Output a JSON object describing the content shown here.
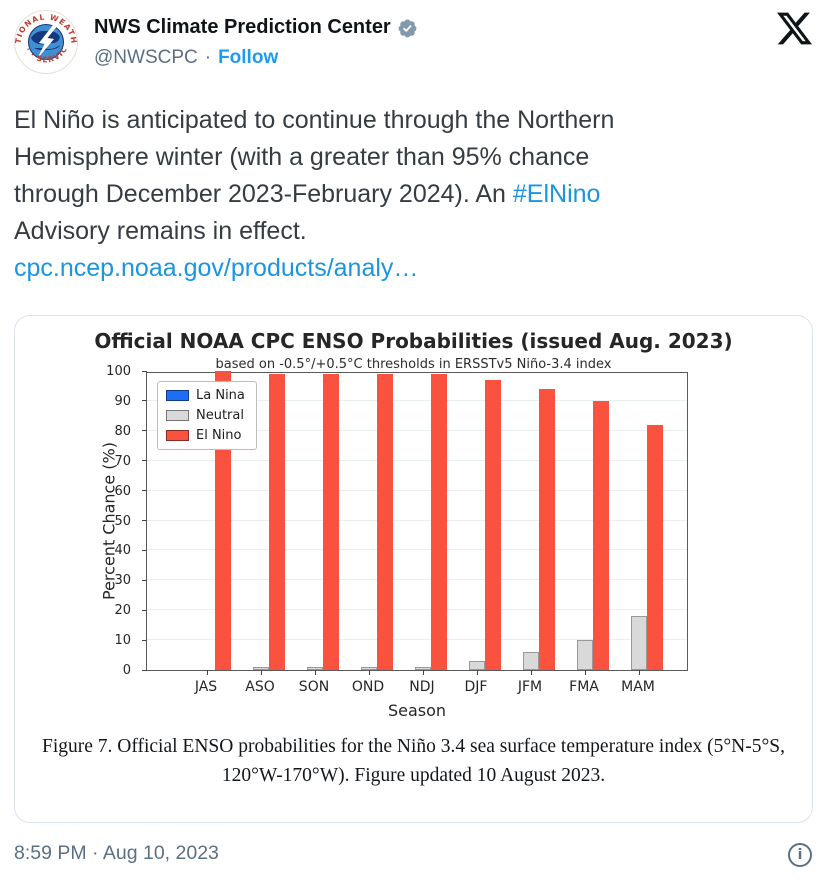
{
  "header": {
    "display_name": "NWS Climate Prediction Center",
    "handle": "@NWSCPC",
    "separator": "·",
    "follow_label": "Follow",
    "avatar_ring_text_top": "NATIONAL WEATHER",
    "avatar_ring_text_bottom": "· · · SERVICE"
  },
  "tweet": {
    "lines": [
      [
        {
          "text": "El Niño is anticipated to continue through the Northern"
        }
      ],
      [
        {
          "text": "Hemisphere winter (with a greater than 95% chance"
        }
      ],
      [
        {
          "text": "through December 2023-February 2024). An "
        },
        {
          "text": "#ElNino",
          "link": true
        }
      ],
      [
        {
          "text": "Advisory remains in effect."
        }
      ],
      [
        {
          "text": "cpc.ncep.noaa.gov/products/analy…",
          "link": true
        }
      ]
    ]
  },
  "chart_data": {
    "type": "bar",
    "title": "Official NOAA CPC ENSO Probabilities (issued Aug. 2023)",
    "subtitle": "based on -0.5°/+0.5°C thresholds in ERSSTv5 Niño-3.4 index",
    "xlabel": "Season",
    "ylabel": "Percent Chance (%)",
    "ylim": [
      0,
      100
    ],
    "yticks": [
      0,
      10,
      20,
      30,
      40,
      50,
      60,
      70,
      80,
      90,
      100
    ],
    "grid": true,
    "legend_position": "upper-left",
    "categories": [
      "JAS",
      "ASO",
      "SON",
      "OND",
      "NDJ",
      "DJF",
      "JFM",
      "FMA",
      "MAM"
    ],
    "series": [
      {
        "name": "La Nina",
        "color": "#1e6ef5",
        "values": [
          0,
          0,
          0,
          0,
          0,
          0,
          0,
          0,
          0
        ]
      },
      {
        "name": "Neutral",
        "color": "#d9d9d9",
        "edge": "#999999",
        "values": [
          0,
          1,
          1,
          1,
          1,
          3,
          6,
          10,
          18
        ]
      },
      {
        "name": "El Nino",
        "color": "#f9523e",
        "values": [
          100,
          99,
          99,
          99,
          99,
          97,
          94,
          90,
          82
        ]
      }
    ]
  },
  "caption": {
    "line1": "Figure 7. Official ENSO probabilities for the Niño 3.4 sea surface temperature index (5°N-5°S,",
    "line2": "120°W-170°W). Figure updated 10 August 2023."
  },
  "footer": {
    "timestamp": "8:59 PM · Aug 10, 2023",
    "info_glyph": "i"
  },
  "colors": {
    "accent_blue": "#1d9bf0",
    "link_blue": "#1b95e0",
    "badge_gray": "#829aab",
    "el_nino_red": "#f9523e",
    "neutral_gray": "#d9d9d9",
    "la_nina_blue": "#1e6ef5"
  }
}
